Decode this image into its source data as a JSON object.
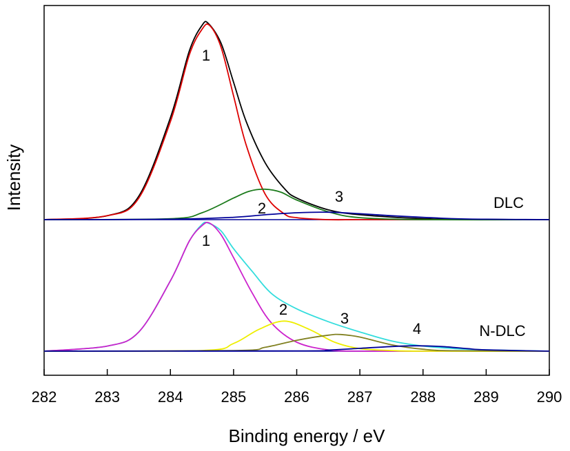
{
  "chart_data": {
    "type": "line",
    "xlabel": "Binding energy / eV",
    "ylabel": "Intensity",
    "xlim": [
      282,
      290
    ],
    "x_ticks": [
      "282",
      "283",
      "284",
      "285",
      "286",
      "287",
      "288",
      "289",
      "290"
    ],
    "y_ticks_shown": false,
    "grid": false,
    "panels": [
      {
        "label": "DLC",
        "peak_labels": [
          "1",
          "2",
          "3"
        ],
        "series": [
          {
            "color": "#000000",
            "x": [
              282,
              283,
              283.5,
              284,
              284.3,
              284.5,
              284.6,
              284.8,
              285,
              285.2,
              285.5,
              285.8,
              286,
              286.5,
              287,
              288,
              289,
              290
            ],
            "y": [
              0,
              0.02,
              0.12,
              0.52,
              0.86,
              0.99,
              1.0,
              0.9,
              0.7,
              0.5,
              0.29,
              0.16,
              0.11,
              0.05,
              0.025,
              0.005,
              0.001,
              0
            ]
          },
          {
            "color": "#dd0000",
            "x": [
              282,
              283,
              283.5,
              284,
              284.3,
              284.5,
              284.62,
              284.8,
              285,
              285.2,
              285.5,
              285.8,
              286,
              286.5,
              287,
              288,
              290
            ],
            "y": [
              0,
              0.02,
              0.11,
              0.5,
              0.84,
              0.97,
              0.99,
              0.88,
              0.63,
              0.38,
              0.13,
              0.03,
              0.01,
              0,
              0,
              0,
              0
            ]
          },
          {
            "color": "#1a7a1a",
            "x": [
              282,
              284,
              284.5,
              285,
              285.25,
              285.5,
              285.75,
              286,
              286.5,
              287,
              288,
              290
            ],
            "y": [
              0,
              0.005,
              0.035,
              0.11,
              0.145,
              0.155,
              0.14,
              0.1,
              0.04,
              0.01,
              0,
              0
            ]
          },
          {
            "color": "#000099",
            "x": [
              282,
              284,
              285,
              285.5,
              286,
              286.5,
              287,
              287.5,
              288,
              288.5,
              289,
              290
            ],
            "y": [
              0,
              0.002,
              0.012,
              0.025,
              0.035,
              0.038,
              0.03,
              0.02,
              0.012,
              0.005,
              0.002,
              0
            ]
          }
        ]
      },
      {
        "label": "N-DLC",
        "peak_labels": [
          "1",
          "2",
          "3",
          "4"
        ],
        "series": [
          {
            "color": "#33dddd",
            "x": [
              282,
              283,
              283.5,
              284,
              284.3,
              284.5,
              284.6,
              284.8,
              285,
              285.3,
              285.6,
              286,
              286.5,
              287,
              287.5,
              288,
              288.5,
              289,
              290
            ],
            "y": [
              0,
              0.04,
              0.15,
              0.55,
              0.86,
              0.99,
              1.0,
              0.94,
              0.8,
              0.62,
              0.45,
              0.33,
              0.23,
              0.15,
              0.08,
              0.04,
              0.02,
              0.01,
              0
            ]
          },
          {
            "color": "#cc22cc",
            "x": [
              282,
              283,
              283.5,
              284,
              284.3,
              284.5,
              284.62,
              284.8,
              285,
              285.3,
              285.6,
              286,
              286.5,
              287,
              288,
              290
            ],
            "y": [
              0,
              0.04,
              0.15,
              0.55,
              0.86,
              0.98,
              1.0,
              0.91,
              0.73,
              0.45,
              0.22,
              0.07,
              0.01,
              0,
              0,
              0
            ]
          },
          {
            "color": "#eeee00",
            "x": [
              282,
              284.5,
              285,
              285.4,
              285.8,
              286.2,
              286.6,
              287,
              287.5,
              288,
              290
            ],
            "y": [
              0,
              0.005,
              0.06,
              0.17,
              0.235,
              0.17,
              0.07,
              0.02,
              0.005,
              0,
              0
            ]
          },
          {
            "color": "#808020",
            "x": [
              282,
              285,
              285.5,
              286,
              286.5,
              286.7,
              287,
              287.5,
              288,
              288.5,
              290
            ],
            "y": [
              0,
              0.005,
              0.03,
              0.085,
              0.125,
              0.13,
              0.11,
              0.05,
              0.015,
              0.003,
              0
            ]
          },
          {
            "color": "#000099",
            "x": [
              282,
              286,
              286.5,
              287,
              287.5,
              287.9,
              288.3,
              288.7,
              289,
              290
            ],
            "y": [
              0,
              0.002,
              0.008,
              0.022,
              0.036,
              0.042,
              0.036,
              0.02,
              0.01,
              0
            ]
          }
        ]
      }
    ]
  }
}
